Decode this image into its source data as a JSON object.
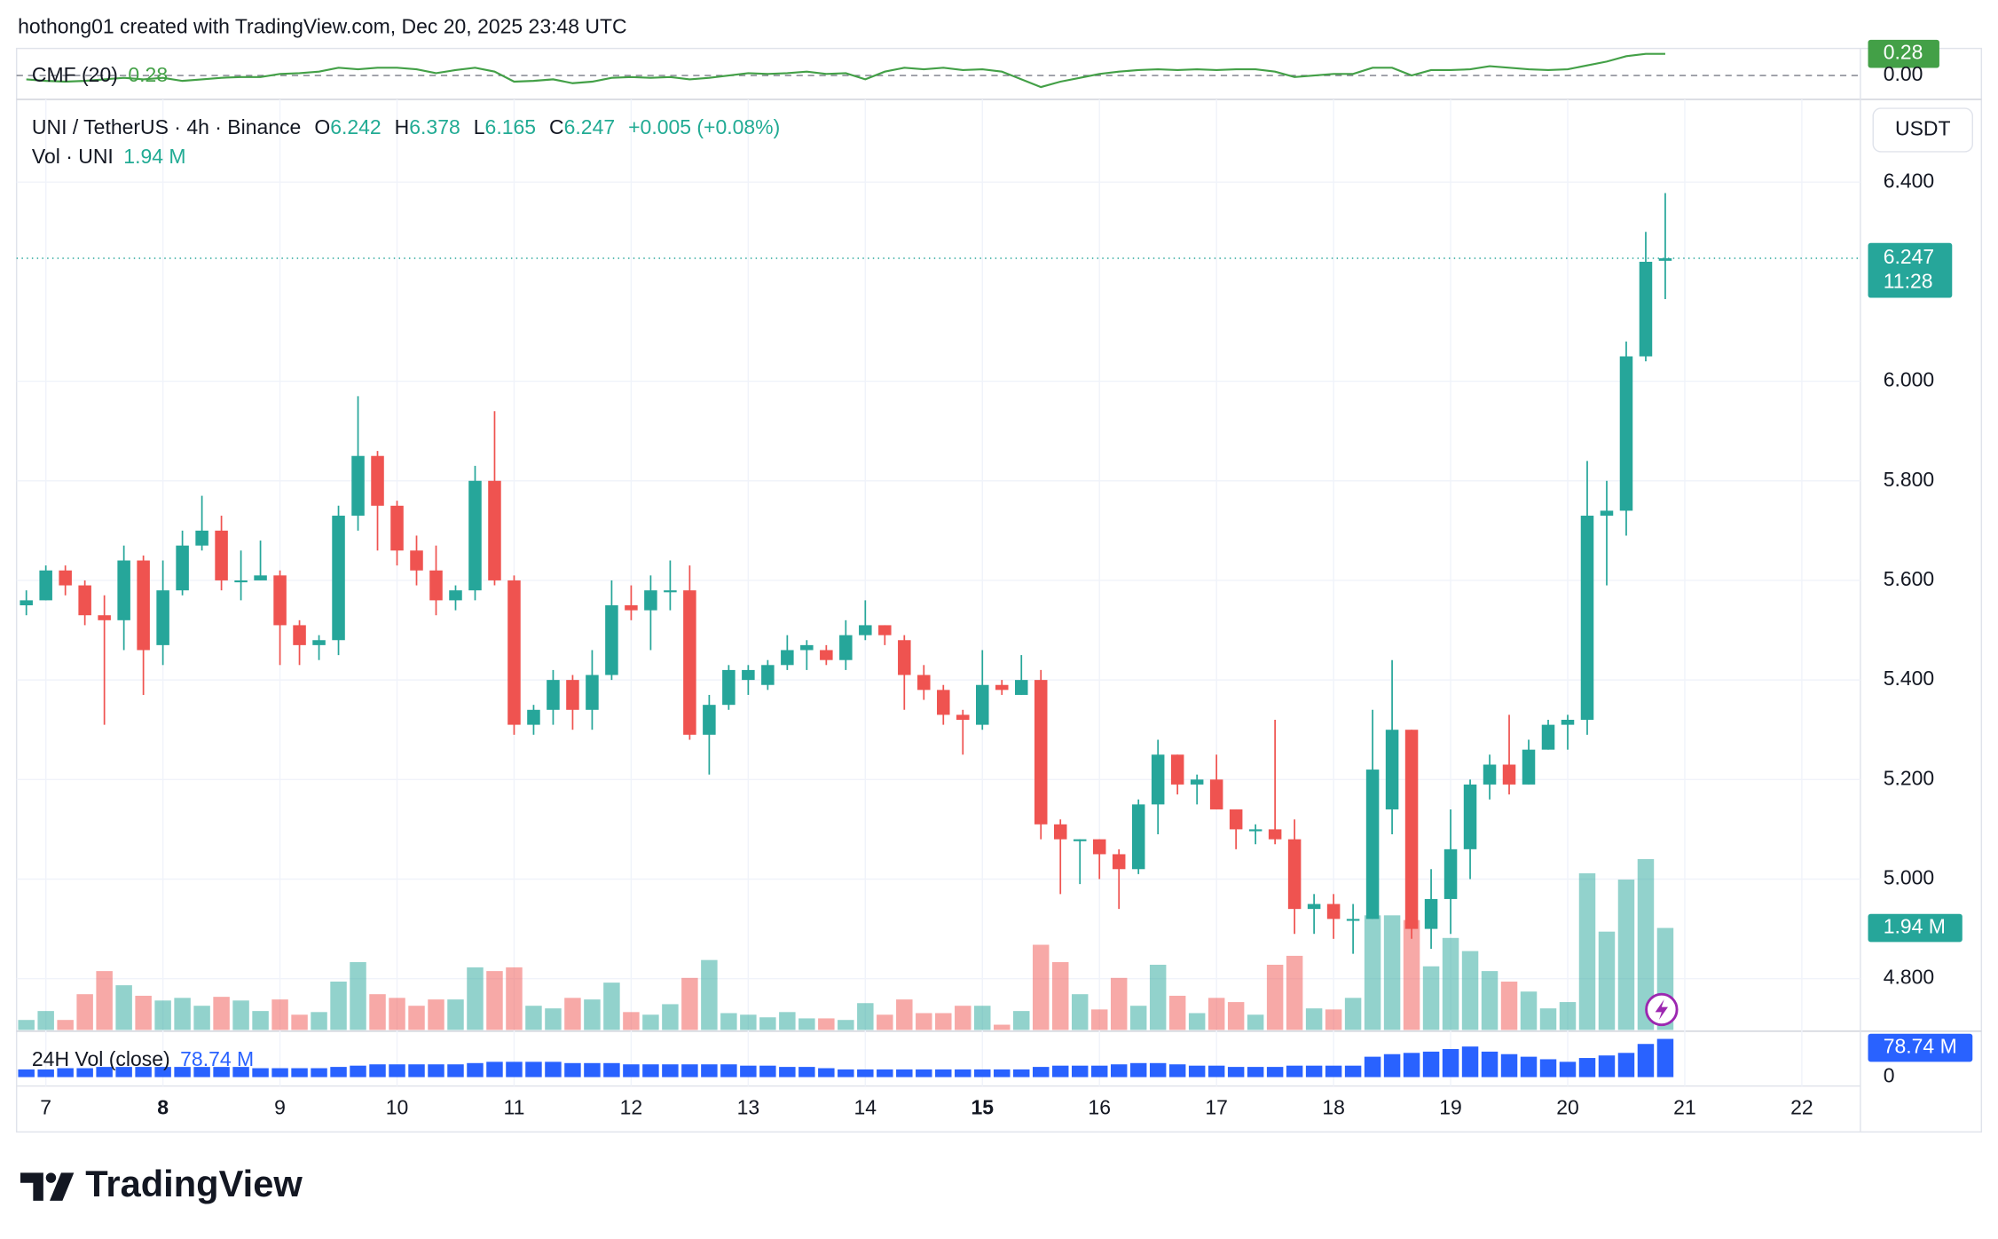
{
  "header": "hothong01 created with TradingView.com, Dec 20, 2025 23:48 UTC",
  "footer_logo": "TradingView",
  "chart_data": {
    "type": "candlestick",
    "symbol": "UNI / TetherUS · 4h · Binance",
    "ohlc_labels": [
      "O",
      "H",
      "L",
      "C"
    ],
    "change": "+0.005 (+0.08%)",
    "currency": "USDT",
    "countdown": "11:28",
    "up_color": "#26a69a",
    "down_color": "#ef5350",
    "grid": true,
    "open": [
      5.55,
      5.56,
      5.62,
      5.59,
      5.53,
      5.52,
      5.64,
      5.47,
      5.58,
      5.67,
      5.7,
      5.6,
      5.6,
      5.61,
      5.51,
      5.47,
      5.48,
      5.73,
      5.85,
      5.75,
      5.66,
      5.62,
      5.56,
      5.58,
      5.8,
      5.6,
      5.31,
      5.34,
      5.4,
      5.34,
      5.41,
      5.55,
      5.54,
      5.58,
      5.58,
      5.29,
      5.35,
      5.4,
      5.39,
      5.43,
      5.46,
      5.46,
      5.44,
      5.49,
      5.51,
      5.48,
      5.41,
      5.38,
      5.33,
      5.31,
      5.39,
      5.37,
      5.4,
      5.11,
      5.08,
      5.08,
      5.05,
      5.02,
      5.15,
      5.25,
      5.19,
      5.2,
      5.14,
      5.1,
      5.1,
      5.08,
      4.94,
      4.95,
      4.92,
      4.92,
      5.14,
      5.3,
      4.9,
      4.96,
      5.06,
      5.19,
      5.23,
      5.19,
      5.26,
      5.31,
      5.32,
      5.73,
      5.74,
      6.05,
      6.242
    ],
    "high": [
      5.58,
      5.63,
      5.63,
      5.6,
      5.57,
      5.67,
      5.65,
      5.64,
      5.7,
      5.77,
      5.73,
      5.66,
      5.68,
      5.62,
      5.52,
      5.49,
      5.75,
      5.97,
      5.86,
      5.76,
      5.69,
      5.67,
      5.59,
      5.83,
      5.94,
      5.61,
      5.35,
      5.42,
      5.41,
      5.46,
      5.6,
      5.59,
      5.61,
      5.64,
      5.63,
      5.37,
      5.43,
      5.43,
      5.44,
      5.49,
      5.48,
      5.47,
      5.52,
      5.56,
      5.51,
      5.49,
      5.43,
      5.39,
      5.34,
      5.46,
      5.4,
      5.45,
      5.42,
      5.12,
      5.08,
      5.08,
      5.06,
      5.16,
      5.28,
      5.25,
      5.21,
      5.25,
      5.14,
      5.11,
      5.32,
      5.12,
      4.97,
      4.97,
      4.95,
      5.34,
      5.44,
      5.3,
      5.02,
      5.14,
      5.2,
      5.25,
      5.33,
      5.28,
      5.32,
      5.33,
      5.84,
      5.8,
      6.08,
      6.3,
      6.378
    ],
    "low": [
      5.53,
      5.56,
      5.57,
      5.51,
      5.31,
      5.46,
      5.37,
      5.43,
      5.57,
      5.66,
      5.58,
      5.56,
      5.6,
      5.43,
      5.43,
      5.44,
      5.45,
      5.7,
      5.66,
      5.63,
      5.59,
      5.53,
      5.54,
      5.56,
      5.59,
      5.29,
      5.29,
      5.31,
      5.3,
      5.3,
      5.4,
      5.52,
      5.46,
      5.54,
      5.28,
      5.21,
      5.34,
      5.37,
      5.38,
      5.42,
      5.42,
      5.43,
      5.42,
      5.48,
      5.47,
      5.34,
      5.36,
      5.31,
      5.25,
      5.3,
      5.37,
      5.37,
      5.08,
      4.97,
      4.99,
      5.0,
      4.94,
      5.01,
      5.09,
      5.17,
      5.15,
      5.14,
      5.06,
      5.07,
      5.07,
      4.89,
      4.89,
      4.88,
      4.85,
      4.92,
      5.09,
      4.88,
      4.86,
      4.89,
      5.0,
      5.16,
      5.17,
      5.19,
      5.26,
      5.26,
      5.29,
      5.59,
      5.69,
      6.04,
      6.165
    ],
    "close": [
      5.56,
      5.62,
      5.59,
      5.53,
      5.52,
      5.64,
      5.46,
      5.58,
      5.67,
      5.7,
      5.6,
      5.6,
      5.61,
      5.51,
      5.47,
      5.48,
      5.73,
      5.85,
      5.75,
      5.66,
      5.62,
      5.56,
      5.58,
      5.8,
      5.6,
      5.31,
      5.34,
      5.4,
      5.34,
      5.41,
      5.55,
      5.54,
      5.58,
      5.58,
      5.29,
      5.35,
      5.42,
      5.42,
      5.43,
      5.46,
      5.47,
      5.44,
      5.49,
      5.51,
      5.49,
      5.41,
      5.38,
      5.33,
      5.32,
      5.39,
      5.38,
      5.4,
      5.11,
      5.08,
      5.08,
      5.05,
      5.02,
      5.15,
      5.25,
      5.19,
      5.2,
      5.14,
      5.1,
      5.1,
      5.08,
      4.94,
      4.95,
      4.92,
      4.92,
      5.22,
      5.3,
      4.9,
      4.96,
      5.06,
      5.19,
      5.23,
      5.19,
      5.26,
      5.31,
      5.32,
      5.73,
      5.74,
      6.05,
      6.24,
      6.247
    ],
    "ylim": [
      4.697,
      6.561
    ],
    "yticks": [
      {
        "value": 4.8,
        "label": "4.800"
      },
      {
        "value": 5.0,
        "label": "5.000"
      },
      {
        "value": 5.2,
        "label": "5.200"
      },
      {
        "value": 5.4,
        "label": "5.400"
      },
      {
        "value": 5.6,
        "label": "5.600"
      },
      {
        "value": 5.8,
        "label": "5.800"
      },
      {
        "value": 6.0,
        "label": "6.000"
      },
      {
        "value": 6.4,
        "label": "6.400"
      }
    ],
    "xlim": [
      -0.5,
      94
    ],
    "xticks": [
      {
        "value": 1,
        "label": "7"
      },
      {
        "value": 7,
        "label": "8"
      },
      {
        "value": 13,
        "label": "9"
      },
      {
        "value": 19,
        "label": "10"
      },
      {
        "value": 25,
        "label": "11"
      },
      {
        "value": 31,
        "label": "12"
      },
      {
        "value": 37,
        "label": "13"
      },
      {
        "value": 43,
        "label": "14"
      },
      {
        "value": 49,
        "label": "15"
      },
      {
        "value": 55,
        "label": "16"
      },
      {
        "value": 61,
        "label": "17"
      },
      {
        "value": 67,
        "label": "18"
      },
      {
        "value": 73,
        "label": "19"
      },
      {
        "value": 79,
        "label": "20"
      },
      {
        "value": 85,
        "label": "21"
      },
      {
        "value": 91,
        "label": "22"
      }
    ],
    "volume": {
      "name": "Vol · UNI",
      "last_label": "1.94 M",
      "ylim": [
        0,
        17.65
      ],
      "values": [
        0.19,
        0.36,
        0.19,
        0.68,
        1.12,
        0.85,
        0.65,
        0.56,
        0.61,
        0.46,
        0.63,
        0.56,
        0.36,
        0.58,
        0.29,
        0.34,
        0.92,
        1.29,
        0.68,
        0.61,
        0.46,
        0.58,
        0.58,
        1.19,
        1.12,
        1.19,
        0.46,
        0.41,
        0.61,
        0.58,
        0.9,
        0.34,
        0.29,
        0.49,
        0.99,
        1.33,
        0.32,
        0.29,
        0.24,
        0.34,
        0.22,
        0.22,
        0.19,
        0.51,
        0.29,
        0.58,
        0.32,
        0.32,
        0.46,
        0.46,
        0.1,
        0.36,
        1.62,
        1.29,
        0.68,
        0.39,
        0.99,
        0.46,
        1.24,
        0.65,
        0.32,
        0.61,
        0.53,
        0.29,
        1.24,
        1.41,
        0.41,
        0.39,
        0.61,
        2.18,
        2.18,
        2.09,
        1.21,
        1.75,
        1.5,
        1.12,
        0.92,
        0.73,
        0.41,
        0.53,
        2.98,
        1.87,
        2.86,
        3.25,
        1.94
      ]
    },
    "vol24h": {
      "name": "24H Vol (close)",
      "last_label": "78.74 M",
      "color": "#2962ff",
      "ylim": [
        0,
        91.9
      ],
      "yticks": [
        0
      ],
      "values": [
        15.8,
        15.8,
        18.4,
        18.4,
        21.0,
        21.0,
        21.0,
        21.0,
        21.0,
        21.0,
        21.0,
        21.0,
        18.4,
        18.4,
        18.4,
        18.4,
        21.0,
        23.6,
        26.3,
        26.3,
        26.3,
        26.3,
        26.3,
        28.9,
        31.5,
        31.5,
        31.5,
        31.5,
        28.9,
        28.9,
        28.9,
        26.3,
        26.3,
        26.3,
        26.3,
        26.3,
        26.3,
        23.6,
        23.6,
        21.0,
        21.0,
        18.4,
        15.8,
        15.8,
        15.8,
        15.8,
        15.8,
        15.8,
        15.8,
        15.8,
        15.8,
        15.8,
        21.0,
        23.6,
        23.6,
        23.6,
        26.3,
        28.9,
        28.9,
        26.3,
        23.6,
        23.6,
        21.0,
        21.0,
        21.0,
        23.6,
        23.6,
        23.6,
        23.6,
        42.0,
        47.3,
        49.9,
        52.5,
        57.8,
        63.0,
        52.5,
        47.3,
        42.0,
        36.8,
        31.5,
        39.4,
        44.6,
        49.9,
        68.3,
        78.74
      ]
    },
    "cmf": {
      "name": "CMF (20)",
      "color": "#43a047",
      "ylim": [
        -0.31,
        0.35
      ],
      "yticks": [
        {
          "value": 0,
          "label": "0.00"
        }
      ],
      "values": [
        -0.05,
        -0.07,
        -0.08,
        -0.07,
        -0.05,
        -0.03,
        -0.05,
        -0.03,
        -0.07,
        -0.05,
        -0.03,
        -0.02,
        -0.02,
        0.02,
        0.03,
        0.05,
        0.1,
        0.08,
        0.1,
        0.1,
        0.08,
        0.03,
        0.07,
        0.1,
        0.05,
        -0.08,
        -0.07,
        -0.05,
        -0.1,
        -0.08,
        -0.03,
        -0.02,
        -0.03,
        -0.02,
        -0.05,
        -0.03,
        0.0,
        0.03,
        0.02,
        0.03,
        0.05,
        0.02,
        0.03,
        -0.05,
        0.05,
        0.1,
        0.08,
        0.1,
        0.07,
        0.08,
        0.05,
        -0.05,
        -0.15,
        -0.08,
        -0.03,
        0.02,
        0.05,
        0.07,
        0.08,
        0.07,
        0.08,
        0.07,
        0.08,
        0.08,
        0.05,
        -0.02,
        0.0,
        0.02,
        0.02,
        0.1,
        0.1,
        0.0,
        0.07,
        0.07,
        0.08,
        0.12,
        0.1,
        0.08,
        0.07,
        0.08,
        0.13,
        0.18,
        0.25,
        0.28,
        0.28
      ]
    }
  }
}
